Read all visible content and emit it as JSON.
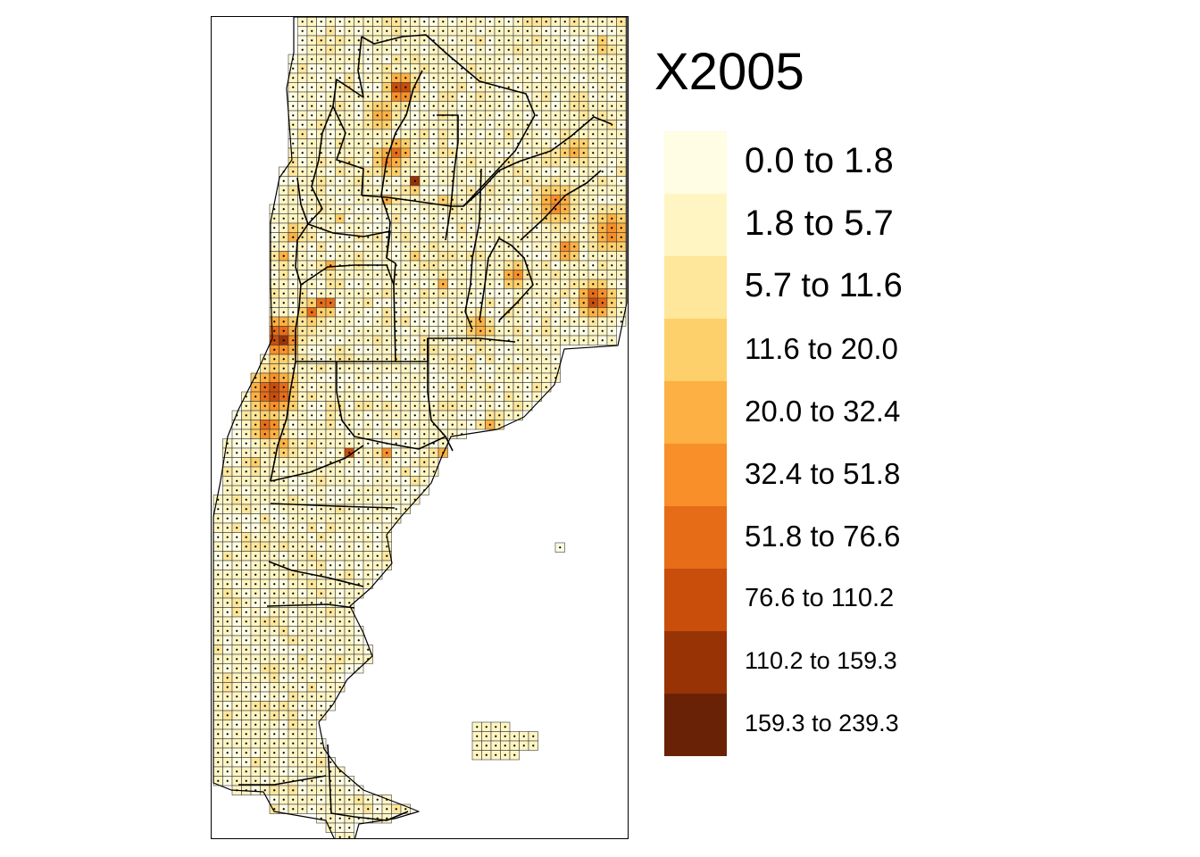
{
  "map": {
    "variable": "X2005",
    "legend": {
      "title": "X2005",
      "classes": [
        {
          "label": "0.0 to 1.8",
          "color": "#fffde3"
        },
        {
          "label": "1.8 to 5.7",
          "color": "#fff5c3"
        },
        {
          "label": "5.7 to 11.6",
          "color": "#fee69a"
        },
        {
          "label": "11.6 to 20.0",
          "color": "#fed06b"
        },
        {
          "label": "20.0 to 32.4",
          "color": "#fdb043"
        },
        {
          "label": "32.4 to 51.8",
          "color": "#f88f29"
        },
        {
          "label": "51.8 to 76.6",
          "color": "#e66c18"
        },
        {
          "label": "76.6 to 110.2",
          "color": "#c94d0b"
        },
        {
          "label": "110.2 to 159.3",
          "color": "#983306"
        },
        {
          "label": "159.3 to 239.3",
          "color": "#6a2206"
        }
      ]
    },
    "colors": {
      "grid_outline": "#3b3b3b",
      "border": "#000000",
      "point": "#000000"
    }
  }
}
